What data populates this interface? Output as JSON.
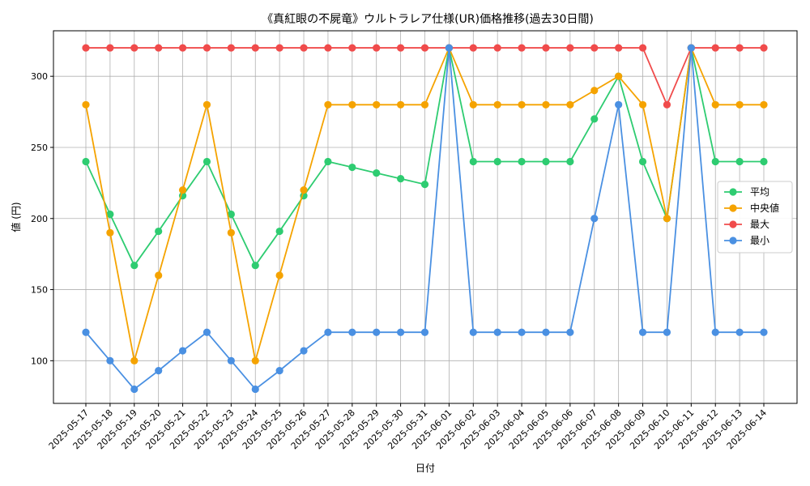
{
  "chart_data": {
    "type": "line",
    "title": "《真紅眼の不屍竜》ウルトラレア仕様(UR)価格推移(過去30日間)",
    "xlabel": "日付",
    "ylabel": "値 (円)",
    "ylim": [
      70,
      332
    ],
    "yticks": [
      100,
      150,
      200,
      250,
      300
    ],
    "grid": true,
    "legend_position": "center-right",
    "categories": [
      "2025-05-17",
      "2025-05-18",
      "2025-05-19",
      "2025-05-20",
      "2025-05-21",
      "2025-05-22",
      "2025-05-23",
      "2025-05-24",
      "2025-05-25",
      "2025-05-26",
      "2025-05-27",
      "2025-05-28",
      "2025-05-29",
      "2025-05-30",
      "2025-05-31",
      "2025-06-01",
      "2025-06-02",
      "2025-06-03",
      "2025-06-04",
      "2025-06-05",
      "2025-06-06",
      "2025-06-07",
      "2025-06-08",
      "2025-06-09",
      "2025-06-10",
      "2025-06-11",
      "2025-06-12",
      "2025-06-13",
      "2025-06-14"
    ],
    "series": [
      {
        "name": "平均",
        "color": "#2ecc71",
        "values": [
          240,
          203,
          167,
          191,
          216,
          240,
          203,
          167,
          191,
          216,
          240,
          236,
          232,
          228,
          224,
          320,
          240,
          240,
          240,
          240,
          240,
          270,
          300,
          240,
          200,
          320,
          240,
          240,
          240
        ]
      },
      {
        "name": "中央値",
        "color": "#f5a300",
        "values": [
          280,
          190,
          100,
          160,
          220,
          280,
          190,
          100,
          160,
          220,
          280,
          280,
          280,
          280,
          280,
          320,
          280,
          280,
          280,
          280,
          280,
          290,
          300,
          280,
          200,
          320,
          280,
          280,
          280
        ]
      },
      {
        "name": "最大",
        "color": "#f04b4b",
        "values": [
          320,
          320,
          320,
          320,
          320,
          320,
          320,
          320,
          320,
          320,
          320,
          320,
          320,
          320,
          320,
          320,
          320,
          320,
          320,
          320,
          320,
          320,
          320,
          320,
          280,
          320,
          320,
          320,
          320
        ]
      },
      {
        "name": "最小",
        "color": "#4a90e2",
        "values": [
          120,
          100,
          80,
          93,
          107,
          120,
          100,
          80,
          93,
          107,
          120,
          120,
          120,
          120,
          120,
          320,
          120,
          120,
          120,
          120,
          120,
          200,
          280,
          120,
          120,
          320,
          120,
          120,
          120
        ]
      }
    ]
  }
}
